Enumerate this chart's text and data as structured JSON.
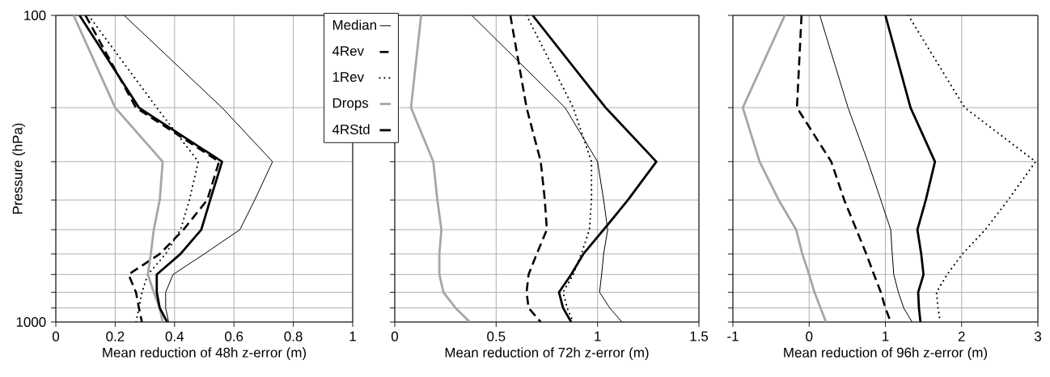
{
  "chart_data": [
    {
      "type": "line",
      "orientation": "horizontal",
      "xlabel": "Mean reduction of 48h z-error (m)",
      "ylabel": "Pressure (hPa)",
      "x": [
        100,
        200,
        300,
        400,
        500,
        600,
        700,
        800,
        900,
        1000
      ],
      "xlim": [
        0,
        1
      ],
      "xticks": [
        0,
        0.2,
        0.4,
        0.6,
        0.8,
        1
      ],
      "ylim": [
        1000,
        100
      ],
      "log": "y",
      "yticks": [
        100,
        {
          "value": 200,
          "label": null
        },
        {
          "value": 300,
          "label": null
        },
        {
          "value": 400,
          "label": null
        },
        {
          "value": 500,
          "label": null
        },
        {
          "value": 600,
          "label": null
        },
        {
          "value": 700,
          "label": null
        },
        {
          "value": 800,
          "label": null
        },
        {
          "value": 900,
          "label": null
        },
        1000
      ],
      "grid": true,
      "legend": "top right",
      "series": [
        {
          "name": "Median",
          "color": "#000000",
          "line_style": "solid",
          "values": [
            0.23,
            0.56,
            0.73,
            0.67,
            0.62,
            0.5,
            0.395,
            0.37,
            0.37,
            0.38
          ]
        },
        {
          "name": "4Rev",
          "color": "#000000",
          "line_style": "dashed",
          "values": [
            0.1,
            0.27,
            0.55,
            0.51,
            0.43,
            0.35,
            0.245,
            0.27,
            0.28,
            0.29
          ]
        },
        {
          "name": "1Rev",
          "color": "#000000",
          "line_style": "dotted",
          "values": [
            0.11,
            0.34,
            0.48,
            0.45,
            0.42,
            0.37,
            0.31,
            0.29,
            0.28,
            0.27
          ]
        },
        {
          "name": "Drops",
          "color": "#a6a6a6",
          "line_style": "solid",
          "values": [
            0.06,
            0.2,
            0.36,
            0.35,
            0.33,
            0.32,
            0.31,
            0.33,
            0.35,
            0.36
          ]
        },
        {
          "name": "4RStd",
          "color": "#000000",
          "line_style": "solid",
          "values": [
            0.08,
            0.28,
            0.56,
            0.52,
            0.49,
            0.42,
            0.34,
            0.34,
            0.35,
            0.375
          ]
        }
      ]
    },
    {
      "type": "line",
      "orientation": "horizontal",
      "xlabel": "Mean reduction of 72h z-error (m)",
      "x": [
        100,
        200,
        300,
        400,
        500,
        600,
        700,
        800,
        900,
        1000
      ],
      "xlim": [
        0,
        1.5
      ],
      "xticks": [
        0,
        0.5,
        1,
        1.5
      ],
      "ylim": [
        1000,
        100
      ],
      "log": "y",
      "yticks": [
        {
          "value": 100,
          "label": null
        },
        {
          "value": 200,
          "label": null
        },
        {
          "value": 300,
          "label": null
        },
        {
          "value": 400,
          "label": null
        },
        {
          "value": 500,
          "label": null
        },
        {
          "value": 600,
          "label": null
        },
        {
          "value": 700,
          "label": null
        },
        {
          "value": 800,
          "label": null
        },
        {
          "value": 900,
          "label": null
        },
        {
          "value": 1000,
          "label": null
        }
      ],
      "grid": true,
      "tick_labels": "x",
      "series": [
        {
          "color": "#000000",
          "line_style": "solid",
          "values": [
            0.38,
            0.84,
            1.0,
            1.03,
            1.05,
            1.03,
            1.02,
            1.01,
            1.06,
            1.12
          ]
        },
        {
          "color": "#000000",
          "line_style": "dashed",
          "values": [
            0.57,
            0.65,
            0.72,
            0.74,
            0.75,
            0.7,
            0.66,
            0.65,
            0.66,
            0.72
          ]
        },
        {
          "color": "#000000",
          "line_style": "dotted",
          "values": [
            0.65,
            0.88,
            0.97,
            0.97,
            0.96,
            0.92,
            0.88,
            0.83,
            0.85,
            0.88
          ]
        },
        {
          "color": "#a6a6a6",
          "line_style": "solid",
          "values": [
            0.13,
            0.08,
            0.19,
            0.21,
            0.23,
            0.22,
            0.22,
            0.24,
            0.3,
            0.37
          ]
        },
        {
          "color": "#000000",
          "line_style": "solid",
          "values": [
            0.68,
            1.04,
            1.29,
            1.15,
            1.03,
            0.93,
            0.87,
            0.81,
            0.83,
            0.87
          ]
        }
      ]
    },
    {
      "type": "line",
      "orientation": "horizontal",
      "xlabel": "Mean reduction of 96h z-error (m)",
      "x": [
        100,
        200,
        300,
        400,
        500,
        600,
        700,
        800,
        900,
        1000
      ],
      "xlim": [
        -1,
        3
      ],
      "xticks": [
        -1,
        0,
        1,
        2,
        3
      ],
      "ylim": [
        1000,
        100
      ],
      "log": "y",
      "yticks": [
        {
          "value": 100,
          "label": null
        },
        {
          "value": 200,
          "label": null
        },
        {
          "value": 300,
          "label": null
        },
        {
          "value": 400,
          "label": null
        },
        {
          "value": 500,
          "label": null
        },
        {
          "value": 600,
          "label": null
        },
        {
          "value": 700,
          "label": null
        },
        {
          "value": 800,
          "label": null
        },
        {
          "value": 900,
          "label": null
        },
        {
          "value": 1000,
          "label": null
        }
      ],
      "grid": true,
      "tick_labels": "x",
      "series": [
        {
          "color": "#000000",
          "line_style": "solid",
          "values": [
            0.14,
            0.51,
            0.77,
            0.94,
            1.07,
            1.09,
            1.11,
            1.17,
            1.24,
            1.35
          ]
        },
        {
          "color": "#000000",
          "line_style": "dashed",
          "values": [
            -0.1,
            -0.16,
            0.29,
            0.46,
            0.62,
            0.75,
            0.85,
            0.94,
            1.0,
            1.07
          ]
        },
        {
          "color": "#000000",
          "line_style": "dotted",
          "values": [
            1.3,
            2.04,
            2.97,
            2.61,
            2.31,
            2.01,
            1.81,
            1.67,
            1.69,
            1.72
          ]
        },
        {
          "color": "#a6a6a6",
          "line_style": "solid",
          "values": [
            -0.32,
            -0.87,
            -0.65,
            -0.4,
            -0.17,
            -0.09,
            0.0,
            0.07,
            0.15,
            0.22
          ]
        },
        {
          "color": "#000000",
          "line_style": "solid",
          "values": [
            1.0,
            1.33,
            1.65,
            1.53,
            1.42,
            1.47,
            1.5,
            1.43,
            1.44,
            1.46
          ]
        }
      ]
    }
  ]
}
